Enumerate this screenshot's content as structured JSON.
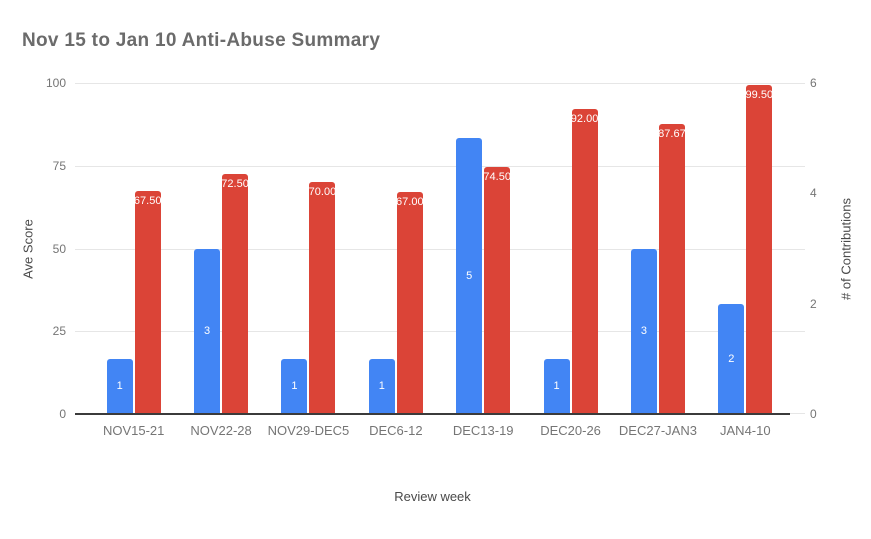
{
  "title": "Nov 15 to Jan 10 Anti-Abuse Summary",
  "chart_data": {
    "type": "bar",
    "title": "Nov 15 to Jan 10 Anti-Abuse Summary",
    "categories": [
      "NOV15-21",
      "NOV22-28",
      "NOV29-DEC5",
      "DEC6-12",
      "DEC13-19",
      "DEC20-26",
      "DEC27-JAN3",
      "JAN4-10"
    ],
    "series": [
      {
        "name": "# of Contributions",
        "axis": "right",
        "color": "#4285f4",
        "values": [
          1,
          3,
          1,
          1,
          5,
          1,
          3,
          2
        ],
        "labels": [
          "1",
          "3",
          "1",
          "1",
          "5",
          "1",
          "3",
          "2"
        ],
        "label_position": "center"
      },
      {
        "name": "Ave Score",
        "axis": "left",
        "color": "#db4437",
        "values": [
          67.5,
          72.5,
          70,
          67,
          74.5,
          92,
          87.67,
          99.5
        ],
        "labels": [
          "67.50",
          "72.50",
          "70.00",
          "67.00",
          "74.50",
          "92.00",
          "87.67",
          "99.50"
        ],
        "label_position": "top"
      }
    ],
    "xlabel": "Review week",
    "ylabel_left": "Ave Score",
    "ylabel_right": "# of Contributions",
    "left_axis": {
      "min": 0,
      "max": 100,
      "ticks": [
        0,
        25,
        50,
        75,
        100
      ]
    },
    "right_axis": {
      "min": 0,
      "max": 6,
      "ticks": [
        0,
        2,
        4,
        6
      ]
    },
    "grid": true,
    "legend": "none",
    "colors": {
      "bar_blue": "#4285f4",
      "bar_red": "#db4437",
      "gridline": "#e6e6e6",
      "axis_line": "#3b3b3b",
      "tick_label": "#757575",
      "axis_title": "#4a4a4a",
      "chart_title": "#6b6b6b",
      "background": "#ffffff"
    }
  }
}
